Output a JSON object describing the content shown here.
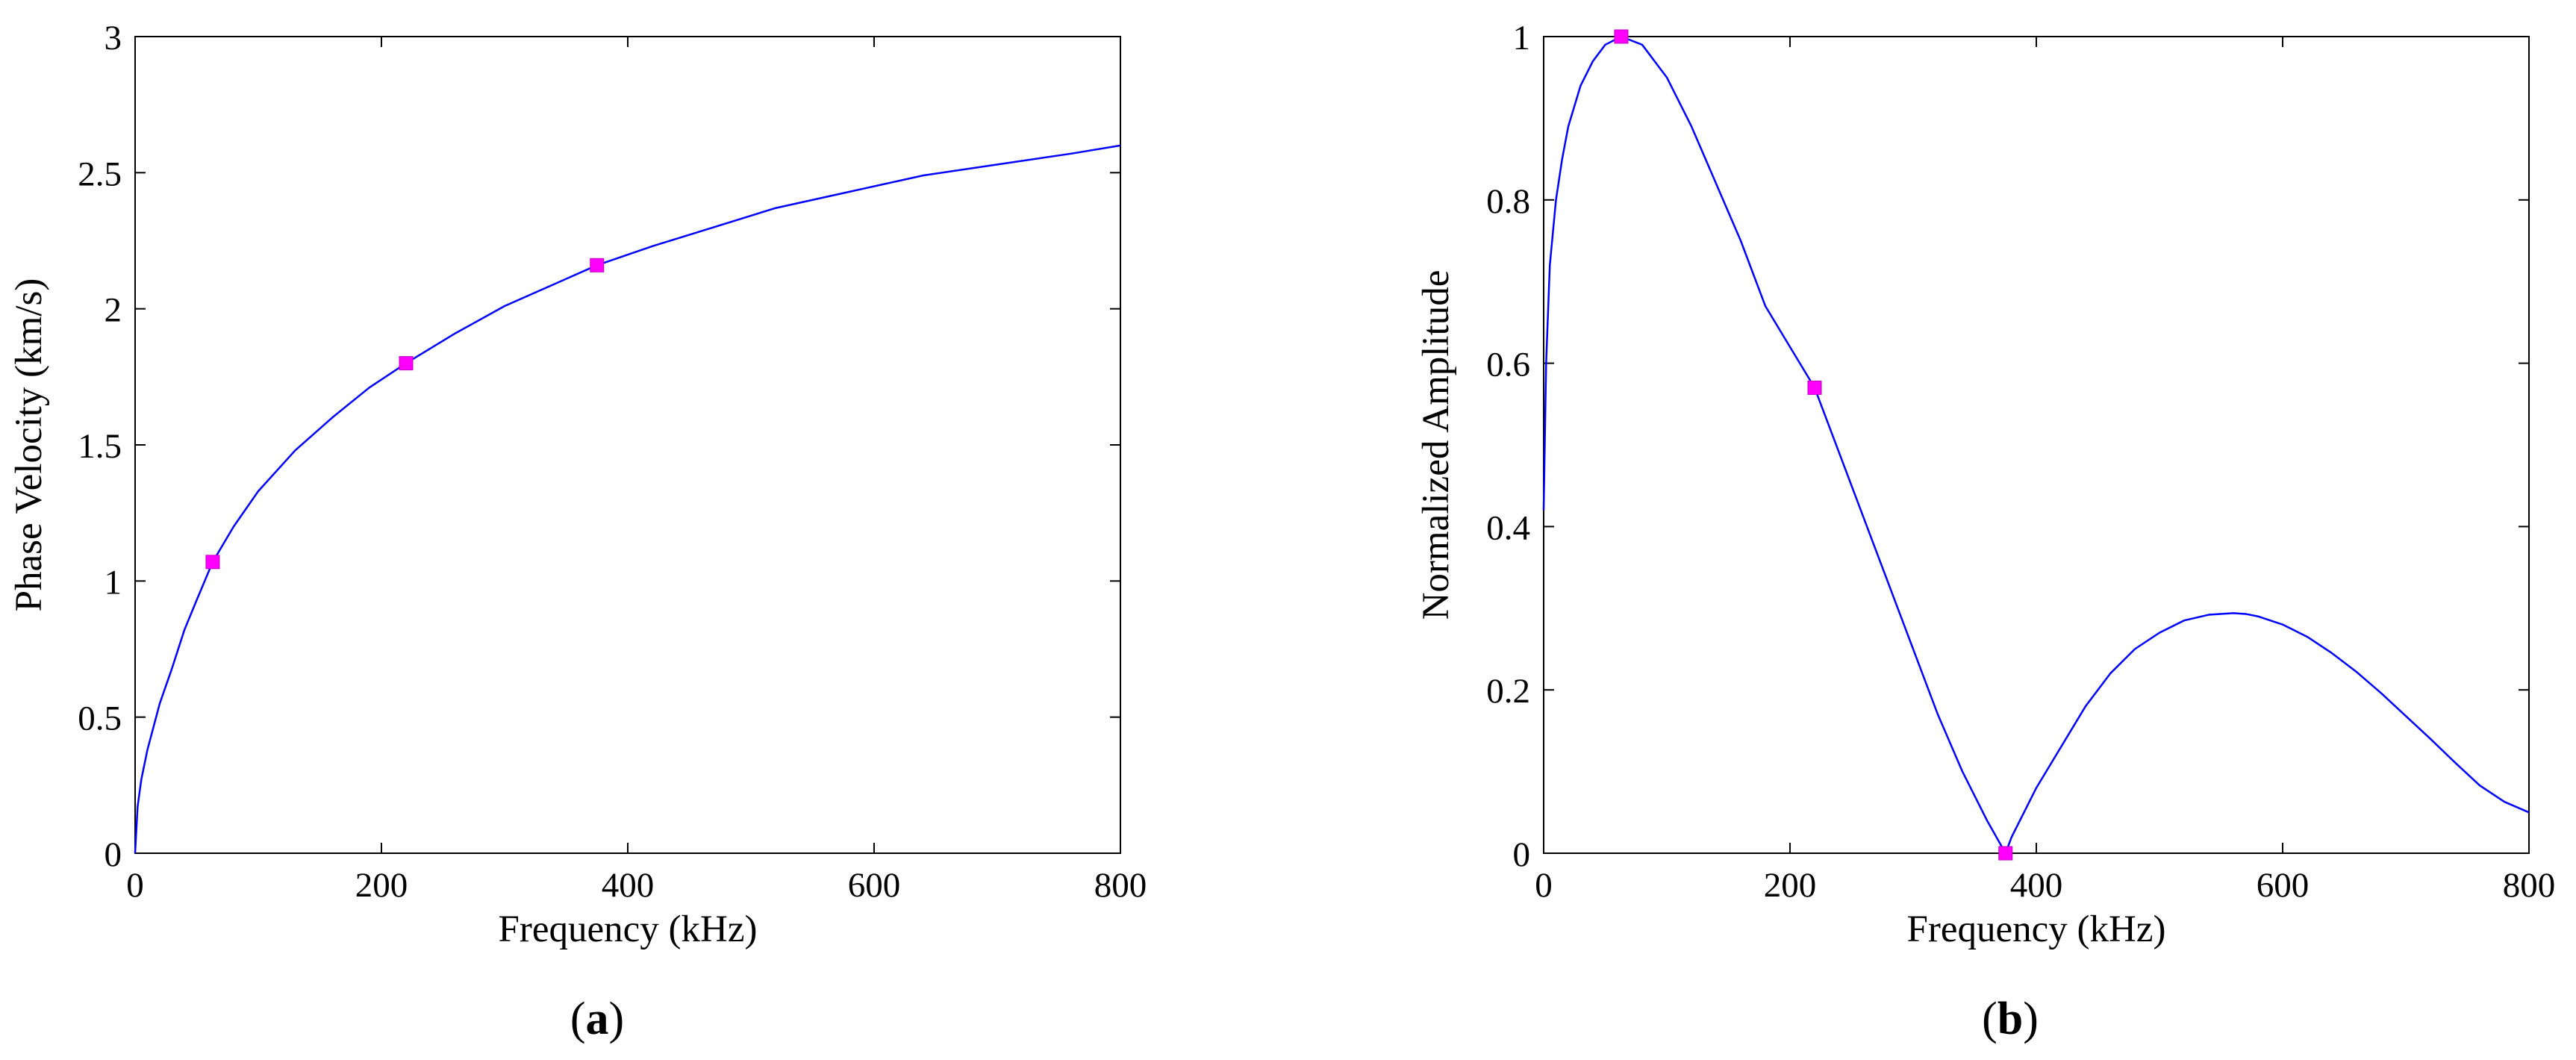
{
  "chart_data": [
    {
      "panel_label": "a",
      "type": "line",
      "xlabel": "Frequency (kHz)",
      "ylabel": "Phase Velocity (km/s)",
      "xlim": [
        0,
        800
      ],
      "ylim": [
        0,
        3
      ],
      "xticks": [
        "0",
        "200",
        "400",
        "600",
        "800"
      ],
      "yticks": [
        "0",
        "0.5",
        "1",
        "1.5",
        "2",
        "2.5",
        "3"
      ],
      "grid": false,
      "line_color": "#0000ff",
      "marker_color": "#ff00ff",
      "series": [
        {
          "x": [
            0,
            2,
            5,
            10,
            20,
            30,
            40,
            50,
            63,
            80,
            100,
            130,
            160,
            190,
            220,
            260,
            300,
            340,
            375,
            420,
            470,
            520,
            580,
            640,
            700,
            760,
            800
          ],
          "y": [
            0.0,
            0.17,
            0.27,
            0.38,
            0.55,
            0.68,
            0.82,
            0.93,
            1.07,
            1.2,
            1.33,
            1.48,
            1.6,
            1.71,
            1.8,
            1.91,
            2.01,
            2.09,
            2.16,
            2.23,
            2.3,
            2.37,
            2.43,
            2.49,
            2.53,
            2.57,
            2.6
          ]
        }
      ],
      "markers": {
        "x": [
          63,
          220,
          375
        ],
        "y": [
          1.07,
          1.8,
          2.16
        ]
      }
    },
    {
      "panel_label": "b",
      "type": "line",
      "xlabel": "Frequency (kHz)",
      "ylabel": "Normalized Amplitude",
      "xlim": [
        0,
        800
      ],
      "ylim": [
        0,
        1
      ],
      "xticks": [
        "0",
        "200",
        "400",
        "600",
        "800"
      ],
      "yticks": [
        "0",
        "0.2",
        "0.4",
        "0.6",
        "0.8",
        "1"
      ],
      "grid": false,
      "line_color": "#0000ff",
      "marker_color": "#ff00ff",
      "series": [
        {
          "x": [
            0,
            2,
            5,
            10,
            15,
            20,
            30,
            40,
            50,
            63,
            80,
            100,
            120,
            140,
            160,
            180,
            200,
            220,
            240,
            260,
            280,
            300,
            320,
            340,
            360,
            375,
            380,
            390,
            400,
            420,
            440,
            460,
            480,
            500,
            520,
            540,
            560,
            570,
            580,
            600,
            620,
            640,
            660,
            680,
            700,
            720,
            740,
            760,
            780,
            800
          ],
          "y": [
            0.42,
            0.6,
            0.72,
            0.8,
            0.85,
            0.89,
            0.94,
            0.97,
            0.99,
            1.0,
            0.99,
            0.95,
            0.89,
            0.82,
            0.75,
            0.67,
            0.62,
            0.57,
            0.49,
            0.41,
            0.33,
            0.25,
            0.17,
            0.1,
            0.04,
            0.0,
            0.02,
            0.05,
            0.08,
            0.13,
            0.18,
            0.22,
            0.25,
            0.27,
            0.285,
            0.292,
            0.294,
            0.293,
            0.29,
            0.28,
            0.265,
            0.245,
            0.222,
            0.196,
            0.168,
            0.14,
            0.111,
            0.083,
            0.063,
            0.05
          ]
        }
      ],
      "markers": {
        "x": [
          63,
          220,
          375
        ],
        "y": [
          1.0,
          0.57,
          0.0
        ]
      }
    }
  ]
}
